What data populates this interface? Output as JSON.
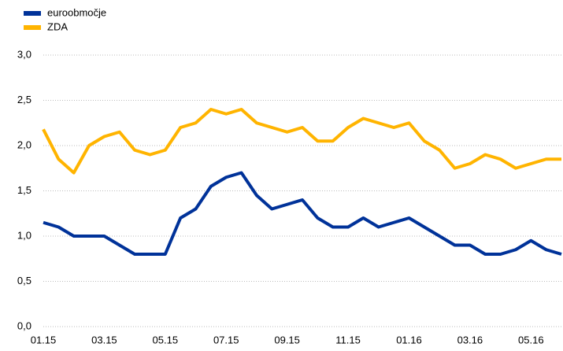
{
  "chart_data": {
    "type": "line",
    "categories": [
      "01.15",
      null,
      null,
      null,
      "03.15",
      null,
      null,
      null,
      "05.15",
      null,
      null,
      null,
      "07.15",
      null,
      null,
      null,
      "09.15",
      null,
      null,
      null,
      "11.15",
      null,
      null,
      null,
      "01.16",
      null,
      null,
      null,
      "03.16",
      null,
      null,
      null,
      "05.16",
      null,
      null
    ],
    "series": [
      {
        "name": "euroobmočje",
        "color": "#003299",
        "values": [
          1.15,
          1.1,
          1.0,
          1.0,
          1.0,
          0.9,
          0.8,
          0.8,
          0.8,
          1.2,
          1.3,
          1.55,
          1.65,
          1.7,
          1.45,
          1.3,
          1.35,
          1.4,
          1.2,
          1.1,
          1.1,
          1.2,
          1.1,
          1.15,
          1.2,
          1.1,
          1.0,
          0.9,
          0.9,
          0.8,
          0.8,
          0.85,
          0.95,
          0.85,
          0.8
        ]
      },
      {
        "name": "ZDA",
        "color": "#FFB400",
        "values": [
          2.18,
          1.85,
          1.7,
          2.0,
          2.1,
          2.15,
          1.95,
          1.9,
          1.95,
          2.2,
          2.25,
          2.4,
          2.35,
          2.4,
          2.25,
          2.2,
          2.15,
          2.2,
          2.05,
          2.05,
          2.2,
          2.3,
          2.25,
          2.2,
          2.25,
          2.05,
          1.95,
          1.75,
          1.8,
          1.9,
          1.85,
          1.75,
          1.8,
          1.85,
          1.85
        ]
      }
    ],
    "ylim": [
      0,
      3
    ],
    "yticks": [
      {
        "value": 0,
        "label": "0,0"
      },
      {
        "value": 0.5,
        "label": "0,5"
      },
      {
        "value": 1,
        "label": "1,0"
      },
      {
        "value": 1.5,
        "label": "1,5"
      },
      {
        "value": 2,
        "label": "2,0"
      },
      {
        "value": 2.5,
        "label": "2,5"
      },
      {
        "value": 3,
        "label": "3,0"
      }
    ],
    "grid": true,
    "legend": "top-left"
  }
}
